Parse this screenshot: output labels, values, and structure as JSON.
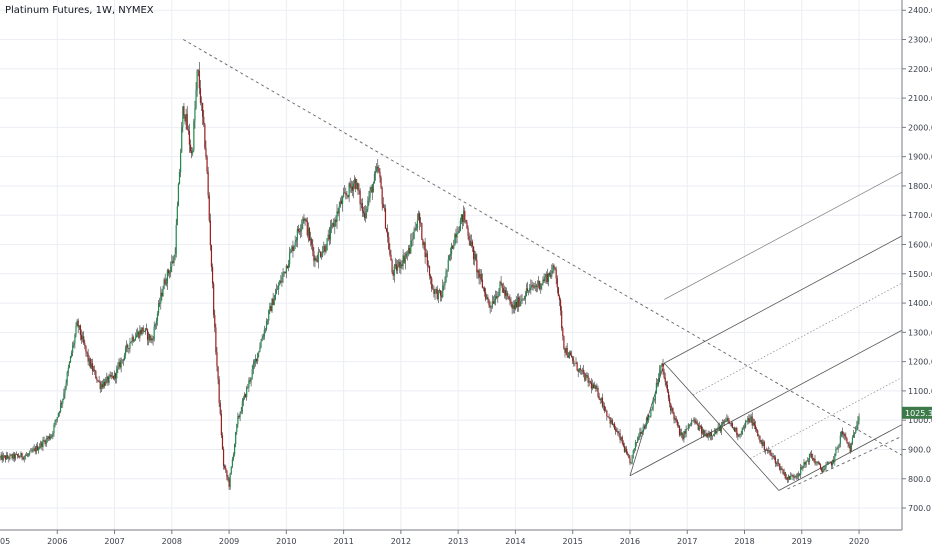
{
  "chart_data": {
    "type": "candlestick",
    "title": "Platinum Futures, 1W, NYMEX",
    "x_ticks": [
      "2006",
      "2007",
      "2008",
      "2009",
      "2010",
      "2011",
      "2012",
      "2013",
      "2014",
      "2015",
      "2016",
      "2017",
      "2018",
      "2019",
      "2020"
    ],
    "x_edge_label": "05",
    "y_ticks": [
      "700.0",
      "800.0",
      "900.0",
      "1000.0",
      "1100.0",
      "1200.0",
      "1300.0",
      "1400.0",
      "1500.0",
      "1600.0",
      "1700.0",
      "1800.0",
      "1900.0",
      "2000.0",
      "2100.0",
      "2200.0",
      "2300.0",
      "2400.0"
    ],
    "ylim": [
      625,
      2435
    ],
    "xlim": [
      2005.0,
      2020.75
    ],
    "last_price_label": "1025.3",
    "last_price": 1025.3,
    "grid": true,
    "colors": {
      "up": "#1f8a4c",
      "down": "#9b1c1c",
      "grid": "#ebeef3",
      "axis_text": "#3a3e4a",
      "price_tag": "#3d7a4a"
    },
    "price_path": [
      [
        2005.0,
        870
      ],
      [
        2005.5,
        880
      ],
      [
        2005.9,
        950
      ],
      [
        2006.1,
        1080
      ],
      [
        2006.35,
        1330
      ],
      [
        2006.55,
        1200
      ],
      [
        2006.75,
        1120
      ],
      [
        2007.0,
        1150
      ],
      [
        2007.3,
        1280
      ],
      [
        2007.5,
        1310
      ],
      [
        2007.65,
        1270
      ],
      [
        2007.85,
        1460
      ],
      [
        2008.05,
        1560
      ],
      [
        2008.2,
        2080
      ],
      [
        2008.35,
        1900
      ],
      [
        2008.45,
        2200
      ],
      [
        2008.6,
        1900
      ],
      [
        2008.75,
        1300
      ],
      [
        2008.9,
        850
      ],
      [
        2009.0,
        780
      ],
      [
        2009.15,
        1000
      ],
      [
        2009.5,
        1230
      ],
      [
        2009.75,
        1400
      ],
      [
        2009.95,
        1500
      ],
      [
        2010.3,
        1700
      ],
      [
        2010.5,
        1550
      ],
      [
        2010.7,
        1600
      ],
      [
        2010.95,
        1740
      ],
      [
        2011.2,
        1820
      ],
      [
        2011.35,
        1700
      ],
      [
        2011.6,
        1860
      ],
      [
        2011.75,
        1650
      ],
      [
        2011.85,
        1500
      ],
      [
        2012.15,
        1580
      ],
      [
        2012.3,
        1700
      ],
      [
        2012.55,
        1450
      ],
      [
        2012.7,
        1420
      ],
      [
        2012.95,
        1640
      ],
      [
        2013.1,
        1700
      ],
      [
        2013.35,
        1500
      ],
      [
        2013.55,
        1390
      ],
      [
        2013.75,
        1460
      ],
      [
        2013.95,
        1380
      ],
      [
        2014.2,
        1440
      ],
      [
        2014.45,
        1470
      ],
      [
        2014.7,
        1520
      ],
      [
        2014.85,
        1250
      ],
      [
        2015.0,
        1200
      ],
      [
        2015.2,
        1150
      ],
      [
        2015.45,
        1090
      ],
      [
        2015.65,
        1000
      ],
      [
        2015.85,
        930
      ],
      [
        2016.0,
        850
      ],
      [
        2016.15,
        950
      ],
      [
        2016.35,
        1020
      ],
      [
        2016.55,
        1190
      ],
      [
        2016.7,
        1050
      ],
      [
        2016.9,
        940
      ],
      [
        2017.1,
        1000
      ],
      [
        2017.3,
        950
      ],
      [
        2017.5,
        960
      ],
      [
        2017.7,
        1000
      ],
      [
        2017.9,
        950
      ],
      [
        2018.1,
        1010
      ],
      [
        2018.3,
        920
      ],
      [
        2018.55,
        860
      ],
      [
        2018.75,
        800
      ],
      [
        2018.95,
        820
      ],
      [
        2019.15,
        880
      ],
      [
        2019.35,
        830
      ],
      [
        2019.55,
        860
      ],
      [
        2019.7,
        960
      ],
      [
        2019.85,
        900
      ],
      [
        2020.0,
        1025
      ]
    ],
    "annotations": [
      {
        "kind": "dashed-trendline",
        "points": [
          [
            2008.2,
            2300
          ],
          [
            2020.75,
            880
          ]
        ]
      },
      {
        "kind": "pitchfork",
        "pivots": [
          [
            2016.0,
            810
          ],
          [
            2016.6,
            1195
          ],
          [
            2018.6,
            760
          ]
        ],
        "levels_price": [
          1130,
          1020,
          930
        ]
      },
      {
        "kind": "dashed-support",
        "points": [
          [
            2018.75,
            765
          ],
          [
            2020.75,
            945
          ]
        ]
      }
    ]
  }
}
